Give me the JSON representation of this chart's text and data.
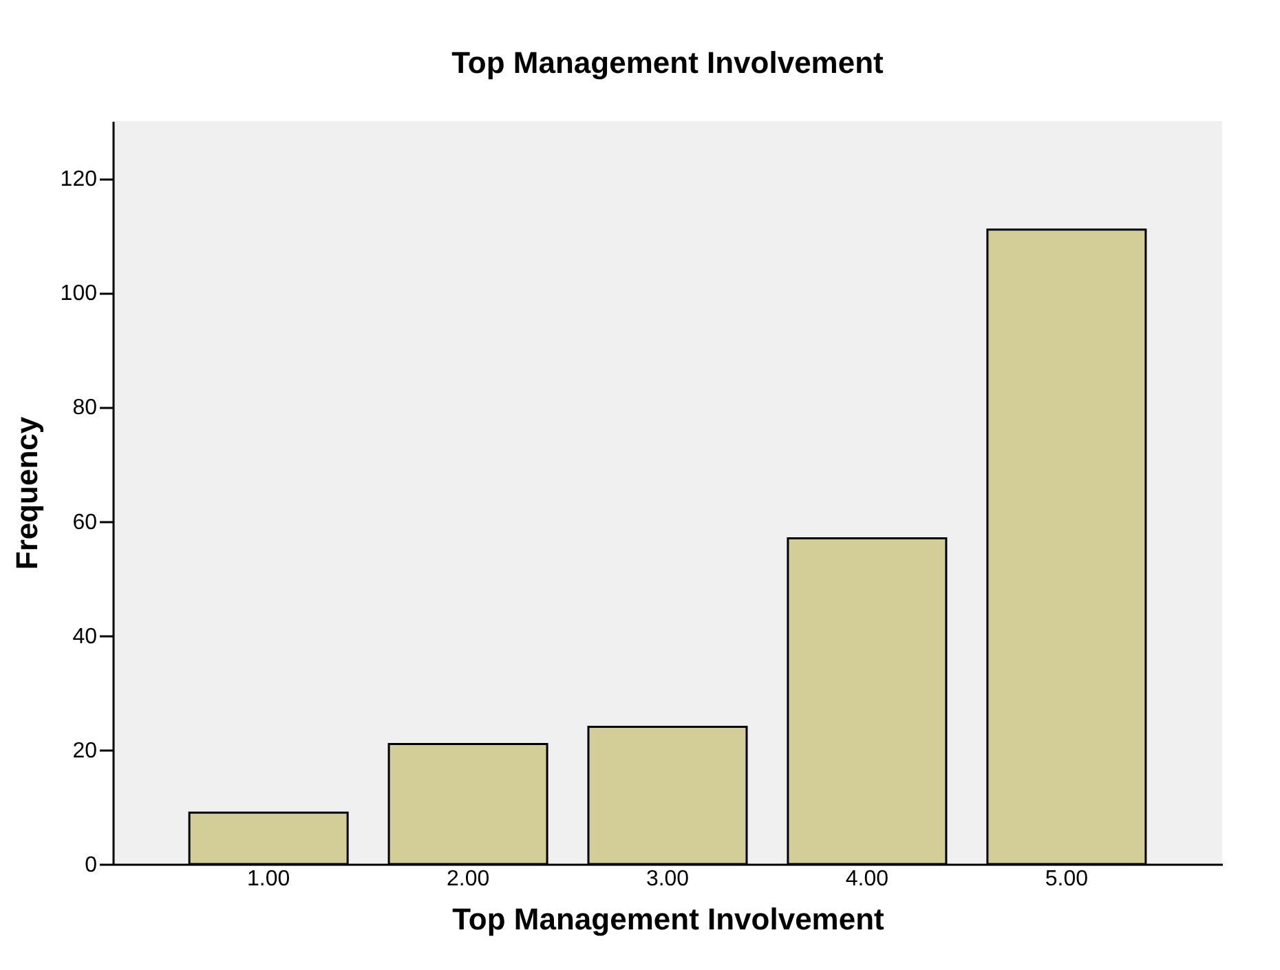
{
  "chart_data": {
    "type": "bar",
    "title": "Top Management Involvement",
    "xlabel": "Top Management Involvement",
    "ylabel": "Frequency",
    "categories": [
      "1.00",
      "2.00",
      "3.00",
      "4.00",
      "5.00"
    ],
    "values": [
      9,
      21,
      24,
      57,
      111
    ],
    "color": "#d3ce97",
    "ylim": [
      0,
      130
    ],
    "yticks": [
      0,
      20,
      40,
      60,
      80,
      100,
      120
    ],
    "grid": false
  }
}
